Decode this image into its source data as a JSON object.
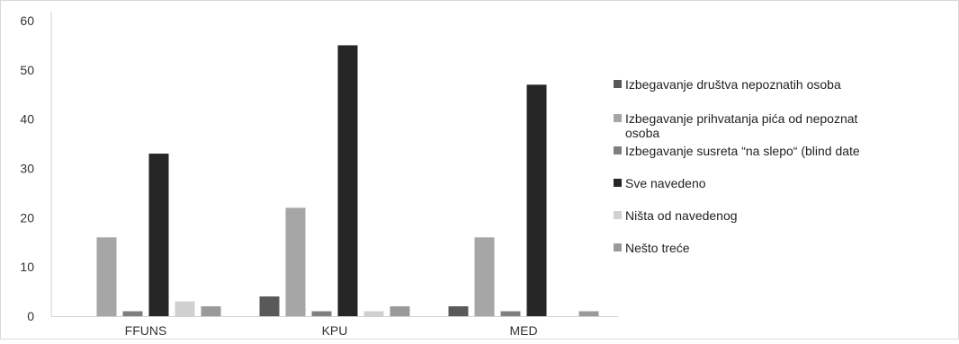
{
  "chart_data": {
    "type": "bar",
    "title": "",
    "xlabel": "",
    "ylabel": "",
    "categories": [
      "FFUNS",
      "KPU",
      "MED"
    ],
    "ylim": [
      0,
      60
    ],
    "yticks": [
      0,
      10,
      20,
      30,
      40,
      50,
      60
    ],
    "grid": false,
    "legend_position": "right",
    "series": [
      {
        "name": "Izbegavanje društva nepoznatih osoba",
        "color": "#595959",
        "values": [
          0,
          4,
          2
        ]
      },
      {
        "name": "Izbegavanje prihvatanja pića od nepoznat osoba",
        "color": "#a6a6a6",
        "values": [
          16,
          22,
          16
        ]
      },
      {
        "name": "Izbegavanje susreta “na slepo“ (blind date",
        "color": "#7f7f7f",
        "values": [
          1,
          1,
          1
        ]
      },
      {
        "name": "Sve navedeno",
        "color": "#262626",
        "values": [
          33,
          55,
          47
        ]
      },
      {
        "name": "Ništa od navedenog",
        "color": "#d0d0d0",
        "values": [
          3,
          1,
          0
        ]
      },
      {
        "name": "Nešto treće",
        "color": "#9a9a9a",
        "values": [
          2,
          2,
          1
        ]
      }
    ]
  }
}
